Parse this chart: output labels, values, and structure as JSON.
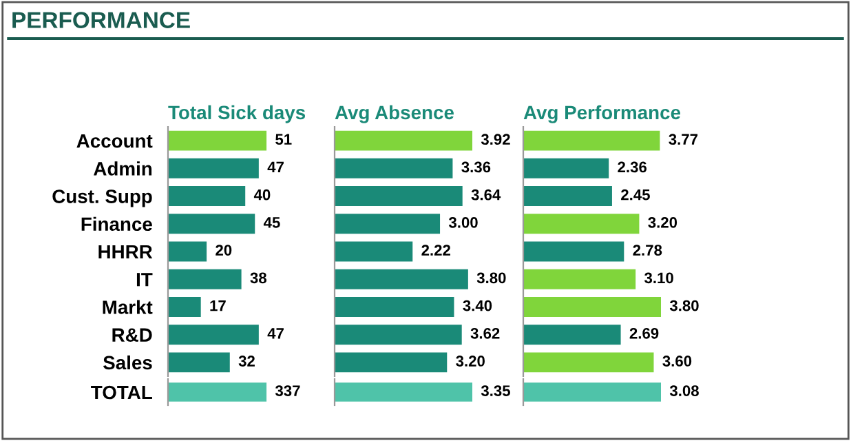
{
  "chart_data": [
    {
      "type": "other",
      "title": "PERFORMANCE"
    },
    {
      "type": "bar",
      "orientation": "horizontal",
      "title": "Total Sick days",
      "categories": [
        "Account",
        "Admin",
        "Cust. Supp",
        "Finance",
        "HHRR",
        "IT",
        "Markt",
        "R&D",
        "Sales"
      ],
      "values": [
        51,
        47,
        40,
        45,
        20,
        38,
        17,
        47,
        32
      ],
      "value_labels": [
        "51",
        "47",
        "40",
        "45",
        "20",
        "38",
        "17",
        "47",
        "32"
      ],
      "colors": [
        "#80d53b",
        "#1a8a78",
        "#1a8a78",
        "#1a8a78",
        "#1a8a78",
        "#1a8a78",
        "#1a8a78",
        "#1a8a78",
        "#1a8a78"
      ],
      "tick_labels": "y"
    },
    {
      "type": "bar",
      "orientation": "horizontal",
      "title": "Avg Absence",
      "categories": [
        null,
        null,
        null,
        null,
        null,
        null,
        null,
        null,
        null
      ],
      "values": [
        3.92,
        3.36,
        3.64,
        3.0,
        2.22,
        3.8,
        3.4,
        3.62,
        3.2
      ],
      "value_labels": [
        "3.92",
        "3.36",
        "3.64",
        "3.00",
        "2.22",
        "3.80",
        "3.40",
        "3.62",
        "3.20"
      ],
      "colors": [
        "#80d53b",
        "#1a8a78",
        "#1a8a78",
        "#1a8a78",
        "#1a8a78",
        "#1a8a78",
        "#1a8a78",
        "#1a8a78",
        "#1a8a78"
      ],
      "tick_labels": false
    },
    {
      "type": "bar",
      "orientation": "horizontal",
      "title": "Avg Performance",
      "categories": [
        null,
        null,
        null,
        null,
        null,
        null,
        null,
        null,
        null
      ],
      "values": [
        3.77,
        2.36,
        2.45,
        3.2,
        2.78,
        3.1,
        3.8,
        2.69,
        3.6
      ],
      "value_labels": [
        "3.77",
        "2.36",
        "2.45",
        "3.20",
        "2.78",
        "3.10",
        "3.80",
        "2.69",
        "3.60"
      ],
      "colors": [
        "#80d53b",
        "#1a8a78",
        "#1a8a78",
        "#80d53b",
        "#1a8a78",
        "#80d53b",
        "#80d53b",
        "#1a8a78",
        "#80d53b"
      ],
      "tick_labels": false
    },
    {
      "type": "bar",
      "orientation": "horizontal",
      "categories": [
        "TOTAL"
      ],
      "values": [
        337
      ],
      "value_labels": [
        "337"
      ],
      "colors": [
        "#4fc3a9"
      ],
      "tick_labels": "y"
    },
    {
      "type": "bar",
      "orientation": "horizontal",
      "categories": [
        null
      ],
      "values": [
        3.35
      ],
      "value_labels": [
        "3.35"
      ],
      "colors": [
        "#4fc3a9"
      ],
      "tick_labels": false
    },
    {
      "type": "bar",
      "orientation": "horizontal",
      "categories": [
        null
      ],
      "values": [
        3.08
      ],
      "value_labels": [
        "3.08"
      ],
      "colors": [
        "#4fc3a9"
      ],
      "tick_labels": false
    }
  ]
}
